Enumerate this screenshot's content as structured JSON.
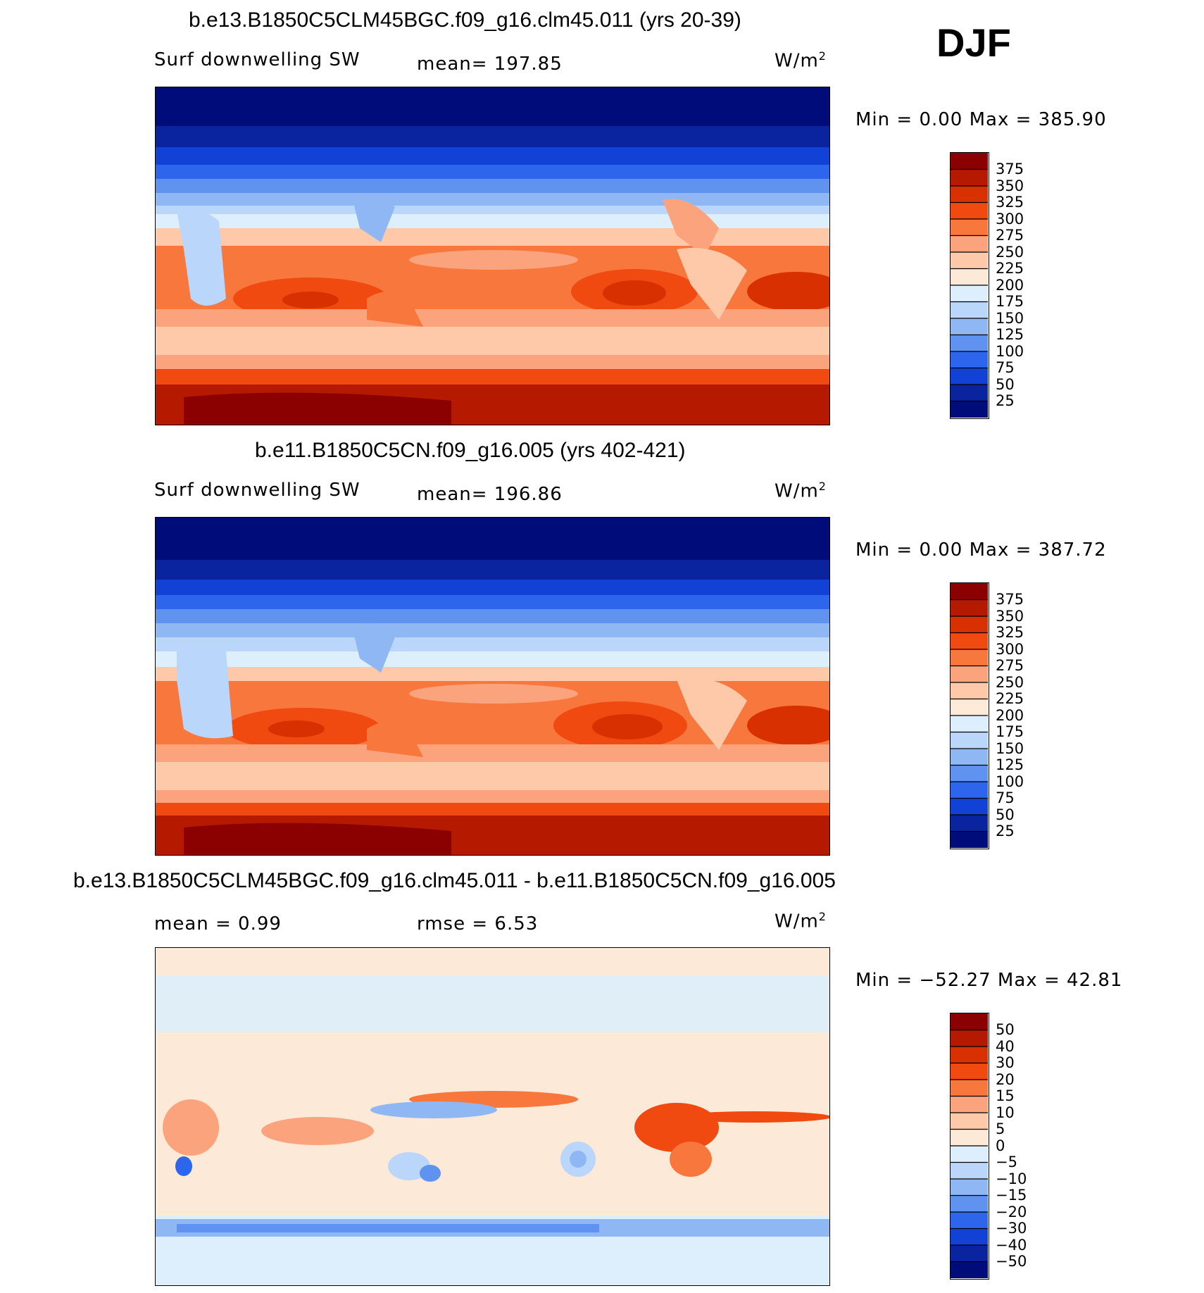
{
  "season": "DJF",
  "panels": [
    {
      "title": "b.e13.B1850C5CLM45BGC.f09_g16.clm45.011 (yrs 20-39)",
      "variable": "Surf downwelling SW",
      "stat": "mean=  197.85",
      "units": "W/m",
      "units_sup": "2",
      "minmax": "Min =    0.00 Max  =  385.90",
      "colorbar": {
        "labels": [
          "375",
          "350",
          "325",
          "300",
          "275",
          "250",
          "225",
          "200",
          "175",
          "150",
          "125",
          "100",
          "75",
          "50",
          "25"
        ],
        "colors": [
          "#8b0000",
          "#b51a00",
          "#d93000",
          "#f04a10",
          "#f7773d",
          "#fba37d",
          "#fdc9a8",
          "#fde9d8",
          "#ddeefc",
          "#bad6fa",
          "#8fb7f4",
          "#5f93ef",
          "#2d66ed",
          "#1241d6",
          "#0a249f",
          "#000c7a"
        ]
      }
    },
    {
      "title": "b.e11.B1850C5CN.f09_g16.005 (yrs 402-421)",
      "variable": "Surf downwelling SW",
      "stat": "mean=  196.86",
      "units": "W/m",
      "units_sup": "2",
      "minmax": "Min =    0.00 Max  =  387.72",
      "colorbar": {
        "labels": [
          "375",
          "350",
          "325",
          "300",
          "275",
          "250",
          "225",
          "200",
          "175",
          "150",
          "125",
          "100",
          "75",
          "50",
          "25"
        ],
        "colors": [
          "#8b0000",
          "#b51a00",
          "#d93000",
          "#f04a10",
          "#f7773d",
          "#fba37d",
          "#fdc9a8",
          "#fde9d8",
          "#ddeefc",
          "#bad6fa",
          "#8fb7f4",
          "#5f93ef",
          "#2d66ed",
          "#1241d6",
          "#0a249f",
          "#000c7a"
        ]
      }
    },
    {
      "title": "b.e13.B1850C5CLM45BGC.f09_g16.clm45.011 - b.e11.B1850C5CN.f09_g16.005",
      "mean_label": "mean =    0.99",
      "rmse_label": "rmse =    6.53",
      "units": "W/m",
      "units_sup": "2",
      "minmax": "Min = −52.27 Max =   42.81",
      "colorbar": {
        "labels": [
          "50",
          "40",
          "30",
          "20",
          "15",
          "10",
          "5",
          "0",
          "−5",
          "−10",
          "−15",
          "−20",
          "−30",
          "−40",
          "−50"
        ],
        "colors": [
          "#8b0000",
          "#b51a00",
          "#d93000",
          "#f04a10",
          "#f7773d",
          "#fba37d",
          "#fdc9a8",
          "#fde9d8",
          "#ddeefc",
          "#bad6fa",
          "#8fb7f4",
          "#5f93ef",
          "#2d66ed",
          "#1241d6",
          "#0a249f",
          "#000c7a"
        ]
      }
    }
  ]
}
